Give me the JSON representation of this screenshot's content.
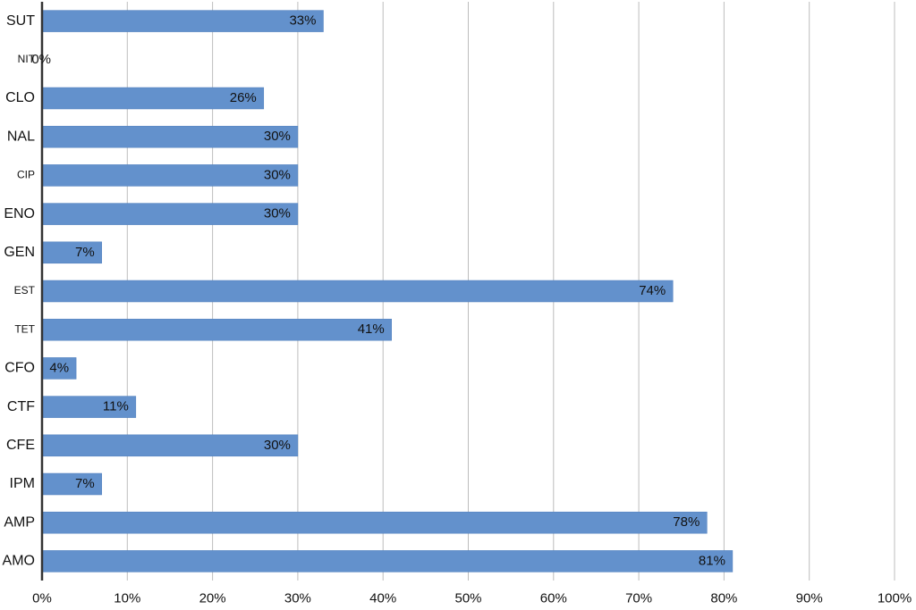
{
  "chart_data": {
    "type": "bar",
    "orientation": "horizontal",
    "categories": [
      "SUT",
      "NIT",
      "CLO",
      "NAL",
      "CIP",
      "ENO",
      "GEN",
      "EST",
      "TET",
      "CFO",
      "CTF",
      "CFE",
      "IPM",
      "AMP",
      "AMO"
    ],
    "values": [
      33,
      0,
      26,
      30,
      30,
      30,
      7,
      74,
      41,
      4,
      11,
      30,
      7,
      78,
      81
    ],
    "data_labels": [
      "33%",
      "0%",
      "26%",
      "30%",
      "30%",
      "30%",
      "7%",
      "74%",
      "41%",
      "4%",
      "11%",
      "30%",
      "7%",
      "78%",
      "81%"
    ],
    "xlim": [
      0,
      100
    ],
    "x_ticks": [
      0,
      10,
      20,
      30,
      40,
      50,
      60,
      70,
      80,
      90,
      100
    ],
    "x_tick_labels": [
      "0%",
      "10%",
      "20%",
      "30%",
      "40%",
      "50%",
      "60%",
      "70%",
      "80%",
      "90%",
      "100%"
    ],
    "title": "",
    "xlabel": "",
    "ylabel": "",
    "grid": "vertical",
    "legend": "none",
    "colors": {
      "bar": "#6391cc",
      "bar_edge": "#4f7fbd",
      "grid": "#bdbdbd",
      "axis": "#333333"
    }
  }
}
